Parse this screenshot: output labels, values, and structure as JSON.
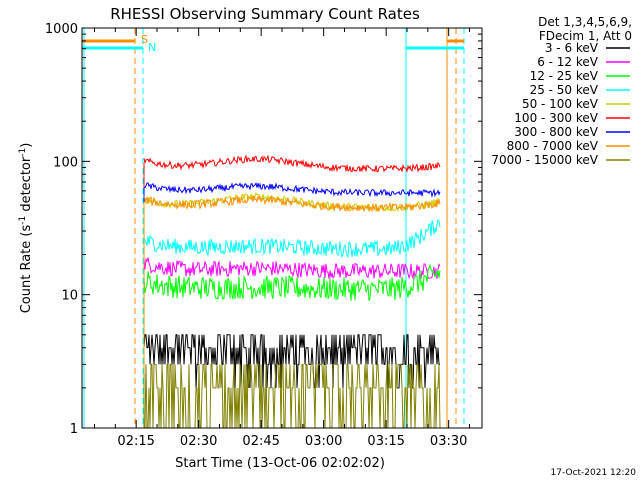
{
  "chart_data": {
    "type": "line",
    "title": "RHESSI Observing Summary Count Rates",
    "xlabel": "Start Time (13-Oct-06 02:02:02)",
    "ylabel": "Count Rate (s",
    "ylabel_sup": "-1",
    "ylabel_mid": " detector",
    "ylabel_end": ")",
    "yscale": "log",
    "ylim": [
      1,
      1000
    ],
    "y_ticks": [
      {
        "value": 1,
        "label": "1"
      },
      {
        "value": 10,
        "label": "10"
      },
      {
        "value": 100,
        "label": "100"
      },
      {
        "value": 1000,
        "label": "1000"
      }
    ],
    "xlim": [
      "02:02",
      "03:38"
    ],
    "x_ticks": [
      "02:15",
      "02:30",
      "02:45",
      "03:00",
      "03:15",
      "03:30"
    ],
    "x_tick_minutes": [
      135,
      150,
      165,
      180,
      195,
      210
    ],
    "x_range_minutes": [
      122,
      218
    ],
    "header": [
      "Det 1,3,4,5,6,9,",
      "FDecim 1, Att 0"
    ],
    "legend_position": "right",
    "series": [
      {
        "name": "3 - 6 keV",
        "color": "#000000",
        "base": 4.2,
        "noise": 0.28,
        "bump": 0,
        "hi": 1
      },
      {
        "name": "6 - 12 keV",
        "color": "#ff00ff",
        "base": 15,
        "noise": 0.06,
        "bump": 0.05,
        "hi": 1
      },
      {
        "name": "12 - 25 keV",
        "color": "#00ff00",
        "base": 11,
        "noise": 0.09,
        "bump": 0.03,
        "hi": 1.35
      },
      {
        "name": "25 - 50 keV",
        "color": "#00ffff",
        "base": 22,
        "noise": 0.06,
        "bump": 0.05,
        "hi": 1.6
      },
      {
        "name": "50 - 100 keV",
        "color": "#cccc00",
        "base": 45,
        "noise": 0.03,
        "bump": 0.2,
        "hi": 1.1
      },
      {
        "name": "100 - 300 keV",
        "color": "#ff0000",
        "base": 88,
        "noise": 0.025,
        "bump": 0.18,
        "hi": 1.05
      },
      {
        "name": "300 - 800 keV",
        "color": "#0000ff",
        "base": 58,
        "noise": 0.025,
        "bump": 0.12,
        "hi": 1
      },
      {
        "name": "800 - 7000 keV",
        "color": "#ff8c00",
        "base": 45,
        "noise": 0.03,
        "bump": 0.14,
        "hi": 1.08
      },
      {
        "name": "7000 - 15000 keV",
        "color": "#808000",
        "base": 2.3,
        "noise": 0.35,
        "bump": 0,
        "hi": 1
      }
    ],
    "markers": [
      {
        "label": "S",
        "color": "#ff8c00"
      },
      {
        "label": "N",
        "color": "#00ffff"
      }
    ],
    "footer": "17-Oct-2021 12:20"
  }
}
